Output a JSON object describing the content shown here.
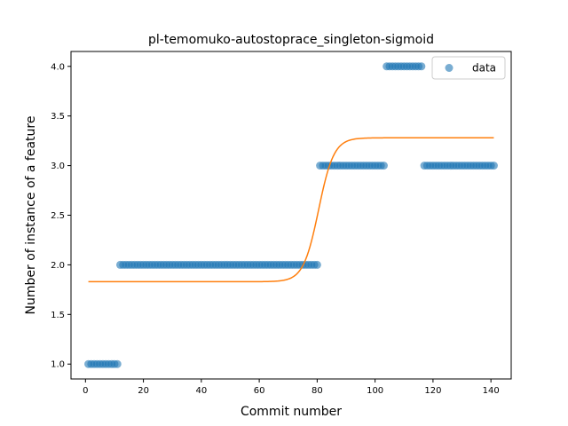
{
  "chart_data": {
    "type": "scatter",
    "title": "pl-temomuko-autostoprace_singleton-sigmoid",
    "xlabel": "Commit number",
    "ylabel": "Number of instance of a feature",
    "xlim": [
      -5,
      147
    ],
    "ylim": [
      0.85,
      4.15
    ],
    "xticks": [
      0,
      20,
      40,
      60,
      80,
      100,
      120,
      140
    ],
    "yticks": [
      1.0,
      1.5,
      2.0,
      2.5,
      3.0,
      3.5,
      4.0
    ],
    "xtick_labels": [
      "0",
      "20",
      "40",
      "60",
      "80",
      "100",
      "120",
      "140"
    ],
    "ytick_labels": [
      "1.0",
      "1.5",
      "2.0",
      "2.5",
      "3.0",
      "3.5",
      "4.0"
    ],
    "legend": {
      "position": "upper right",
      "entries": [
        "data"
      ]
    },
    "grid": false,
    "series": [
      {
        "name": "data",
        "kind": "scatter",
        "color": "#1f77b4",
        "segments": [
          {
            "x_from": 1,
            "x_to": 11,
            "y": 1
          },
          {
            "x_from": 12,
            "x_to": 80,
            "y": 2
          },
          {
            "x_from": 81,
            "x_to": 103,
            "y": 3
          },
          {
            "x_from": 104,
            "x_to": 116,
            "y": 4
          },
          {
            "x_from": 117,
            "x_to": 141,
            "y": 3
          }
        ]
      },
      {
        "kind": "line",
        "color": "#ff7f0e",
        "x_range": [
          1,
          141
        ],
        "sigmoid": {
          "low": 1.83,
          "high": 3.28,
          "midpoint": 80.5,
          "steepness": 0.38
        }
      }
    ]
  }
}
